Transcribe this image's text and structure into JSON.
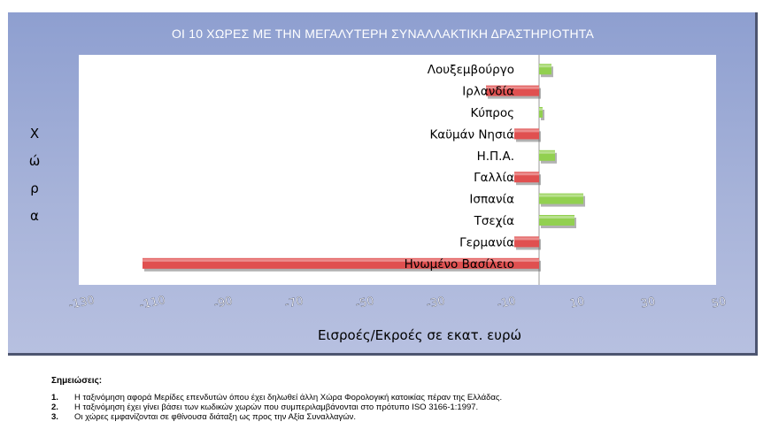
{
  "chart_data": {
    "type": "bar",
    "orientation": "horizontal",
    "title": "ΟΙ 10 ΧΩΡΕΣ ΜΕ ΤΗΝ ΜΕΓΑΛΥΤΕΡΗ ΣΥΝΑΛΛΑΚΤΙΚΗ ΔΡΑΣΤΗΡΙΟΤΗΤΑ",
    "ylabel": "Χώρα",
    "xlabel": "Εισροές/Εκροές σε εκατ. ευρώ",
    "xlim": [
      -130,
      50
    ],
    "xticks": [
      "-130",
      "-110",
      "-90",
      "-70",
      "-50",
      "-30",
      "-10",
      "10",
      "30",
      "50"
    ],
    "categories": [
      "Λουξεμβούργο",
      "Ιρλανδία",
      "Κύπρος",
      "Καϋμάν Νησιά",
      "Η.Π.Α.",
      "Γαλλία",
      "Ισπανία",
      "Τσεχία",
      "Γερμανία",
      "Ηνωμένο Βασίλειο"
    ],
    "values": [
      3.5,
      -15,
      1,
      -7,
      4.5,
      -7,
      12.5,
      10,
      -7,
      -112
    ],
    "colors": {
      "positive": "#92d050",
      "negative": "#e05050"
    },
    "grid": false,
    "legend": "none"
  },
  "notes": {
    "title": "Σημειώσεις:",
    "items": [
      {
        "num": "1.",
        "text": "Η ταξινόμηση αφορά Μερίδες επενδυτών όπου έχει δηλωθεί άλλη Χώρα Φορολογική κατοικίας πέραν της Ελλάδας."
      },
      {
        "num": "2.",
        "text": "Η ταξινόμηση έχει γίνει βάσει των κωδικών χωρών που συμπεριλαμβάνονται στο πρότυπο ISO 3166-1:1997."
      },
      {
        "num": "3.",
        "text": "Οι χώρες εμφανίζονται σε φθίνουσα διάταξη ως προς την Αξία Συναλλαγών."
      }
    ]
  }
}
